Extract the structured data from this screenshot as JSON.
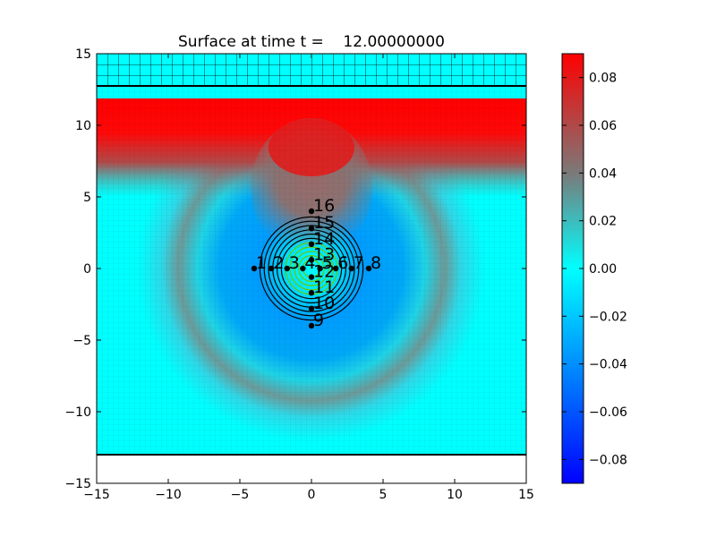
{
  "chart_data": {
    "type": "heatmap",
    "title": "Surface at time t =    12.00000000",
    "xlim": [
      -15,
      15
    ],
    "ylim": [
      -15,
      15
    ],
    "x_ticks": [
      "−15",
      "−10",
      "−5",
      "0",
      "5",
      "10",
      "15"
    ],
    "y_ticks": [
      "−15",
      "−10",
      "−5",
      "0",
      "5",
      "10",
      "15"
    ],
    "x_tick_values": [
      -15,
      -10,
      -5,
      0,
      5,
      10,
      15
    ],
    "y_tick_values": [
      -15,
      -10,
      -5,
      0,
      5,
      10,
      15
    ],
    "shoreline_y": 12.75,
    "bottom_edge_y": -13.0,
    "colorbar": {
      "range": [
        -0.09,
        0.09
      ],
      "tick_values": [
        -0.08,
        -0.06,
        -0.04,
        -0.02,
        0.0,
        0.02,
        0.04,
        0.06,
        0.08
      ],
      "tick_labels": [
        "−0.08",
        "−0.06",
        "−0.04",
        "−0.02",
        "0.00",
        "0.02",
        "0.04",
        "0.06",
        "0.08"
      ],
      "colors": {
        "min": "#0000ff",
        "low": "#00a0ff",
        "zero": "#00ffff",
        "high": "#7a7a7a",
        "max": "#ff0000"
      }
    },
    "gauges": [
      {
        "id": "1",
        "x": -4.0,
        "y": 0.0
      },
      {
        "id": "2",
        "x": -2.8,
        "y": 0.0
      },
      {
        "id": "3",
        "x": -1.7,
        "y": 0.0
      },
      {
        "id": "4",
        "x": -0.6,
        "y": 0.0
      },
      {
        "id": "5",
        "x": 0.6,
        "y": 0.0
      },
      {
        "id": "6",
        "x": 1.7,
        "y": 0.0
      },
      {
        "id": "7",
        "x": 2.8,
        "y": 0.0
      },
      {
        "id": "8",
        "x": 4.0,
        "y": 0.0
      },
      {
        "id": "9",
        "x": 0.0,
        "y": -4.0
      },
      {
        "id": "10",
        "x": 0.0,
        "y": -2.8
      },
      {
        "id": "11",
        "x": 0.0,
        "y": -1.7
      },
      {
        "id": "12",
        "x": 0.0,
        "y": -0.6
      },
      {
        "id": "13",
        "x": 0.0,
        "y": 0.6
      },
      {
        "id": "14",
        "x": 0.0,
        "y": 1.7
      },
      {
        "id": "15",
        "x": 0.0,
        "y": 2.8
      },
      {
        "id": "16",
        "x": 0.0,
        "y": 4.0
      }
    ],
    "contour_color": "#000000",
    "contour_inner_color": "#66cc00"
  }
}
